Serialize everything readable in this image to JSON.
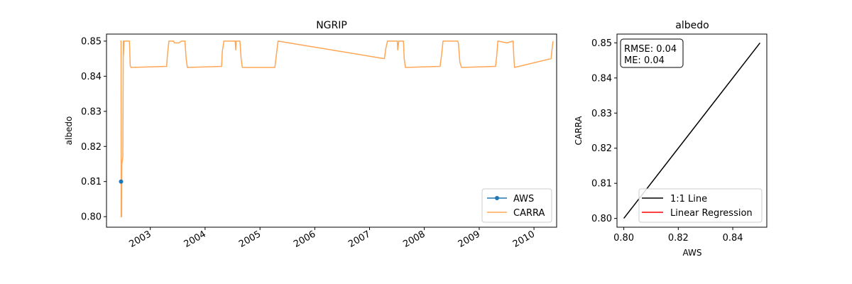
{
  "chart_data": [
    {
      "type": "line",
      "title": "NGRIP",
      "xlabel": "",
      "ylabel": "albedo",
      "x_axis": "date",
      "xlim": [
        "2002-03-15",
        "2010-06-01"
      ],
      "ylim": [
        0.797,
        0.852
      ],
      "xtick_labels": [
        "2003",
        "2004",
        "2005",
        "2006",
        "2007",
        "2008",
        "2009",
        "2010"
      ],
      "ytick_labels": [
        "0.80",
        "0.81",
        "0.82",
        "0.83",
        "0.84",
        "0.85"
      ],
      "ytick_values": [
        0.8,
        0.81,
        0.82,
        0.83,
        0.84,
        0.85
      ],
      "grid": false,
      "legend": "lower-right",
      "series": [
        {
          "name": "AWS",
          "color": "#1f77b4",
          "marker": "circle",
          "points": [
            [
              "2002-06-20",
              0.81
            ]
          ]
        },
        {
          "name": "CARRA",
          "color": "#ffa756",
          "points": [
            [
              "2002-06-15",
              0.85
            ],
            [
              "2002-06-20",
              0.85
            ],
            [
              "2002-06-21",
              0.8
            ],
            [
              "2002-06-24",
              0.8
            ],
            [
              "2002-06-25",
              0.815
            ],
            [
              "2002-07-02",
              0.817
            ],
            [
              "2002-07-05",
              0.85
            ],
            [
              "2002-07-06",
              0.846
            ],
            [
              "2002-07-10",
              0.85
            ],
            [
              "2002-08-15",
              0.85
            ],
            [
              "2002-08-20",
              0.843
            ],
            [
              "2002-08-25",
              0.8425
            ],
            [
              "2003-04-20",
              0.8428
            ],
            [
              "2003-04-25",
              0.846
            ],
            [
              "2003-05-05",
              0.85
            ],
            [
              "2003-06-05",
              0.85
            ],
            [
              "2003-06-10",
              0.8495
            ],
            [
              "2003-07-10",
              0.8495
            ],
            [
              "2003-07-28",
              0.85
            ],
            [
              "2003-08-20",
              0.85
            ],
            [
              "2003-08-28",
              0.845
            ],
            [
              "2003-09-05",
              0.8425
            ],
            [
              "2004-04-20",
              0.8428
            ],
            [
              "2004-04-25",
              0.847
            ],
            [
              "2004-05-05",
              0.85
            ],
            [
              "2004-07-20",
              0.85
            ],
            [
              "2004-07-23",
              0.8475
            ],
            [
              "2004-07-26",
              0.85
            ],
            [
              "2004-08-20",
              0.85
            ],
            [
              "2004-08-28",
              0.845
            ],
            [
              "2004-09-05",
              0.8425
            ],
            [
              "2005-04-10",
              0.8425
            ],
            [
              "2005-05-01",
              0.85
            ],
            [
              "2007-04-10",
              0.845
            ],
            [
              "2007-04-20",
              0.848
            ],
            [
              "2007-05-01",
              0.85
            ],
            [
              "2007-07-05",
              0.85
            ],
            [
              "2007-07-08",
              0.8475
            ],
            [
              "2007-07-15",
              0.85
            ],
            [
              "2007-08-15",
              0.85
            ],
            [
              "2007-08-20",
              0.845
            ],
            [
              "2007-08-28",
              0.8425
            ],
            [
              "2008-04-15",
              0.8428
            ],
            [
              "2008-04-25",
              0.846
            ],
            [
              "2008-05-05",
              0.85
            ],
            [
              "2008-08-10",
              0.85
            ],
            [
              "2008-08-15",
              0.8495
            ],
            [
              "2008-08-25",
              0.844
            ],
            [
              "2008-09-05",
              0.8425
            ],
            [
              "2009-04-20",
              0.8428
            ],
            [
              "2009-04-28",
              0.846
            ],
            [
              "2009-05-05",
              0.85
            ],
            [
              "2009-07-05",
              0.8495
            ],
            [
              "2009-08-15",
              0.85
            ],
            [
              "2009-08-20",
              0.845
            ],
            [
              "2009-08-25",
              0.8425
            ],
            [
              "2010-04-25",
              0.845
            ],
            [
              "2010-04-30",
              0.847
            ],
            [
              "2010-05-08",
              0.85
            ]
          ]
        }
      ]
    },
    {
      "type": "line",
      "title": "albedo",
      "xlabel": "AWS",
      "ylabel": "CARRA",
      "xlim": [
        0.7975,
        0.8525
      ],
      "ylim": [
        0.7975,
        0.8525
      ],
      "xtick_labels": [
        "0.80",
        "0.82",
        "0.84"
      ],
      "xtick_values": [
        0.8,
        0.82,
        0.84
      ],
      "ytick_labels": [
        "0.80",
        "0.81",
        "0.82",
        "0.83",
        "0.84",
        "0.85"
      ],
      "ytick_values": [
        0.8,
        0.81,
        0.82,
        0.83,
        0.84,
        0.85
      ],
      "grid": false,
      "legend": "lower-right",
      "annotation": [
        "RMSE: 0.04",
        "ME: 0.04"
      ],
      "series": [
        {
          "name": "1:1 Line",
          "color": "#000000",
          "points": [
            [
              0.8,
              0.8
            ],
            [
              0.85,
              0.85
            ]
          ]
        },
        {
          "name": "Linear Regression",
          "color": "#ff0000",
          "points": []
        }
      ]
    }
  ]
}
